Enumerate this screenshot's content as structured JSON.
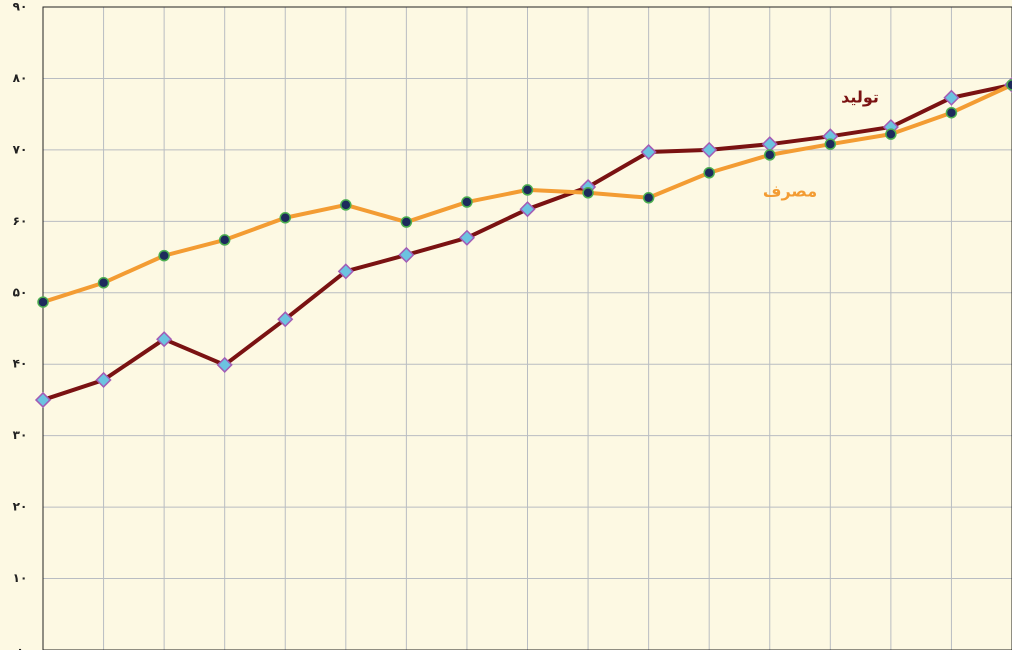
{
  "chart_data": {
    "type": "line",
    "categories": [
      null,
      null,
      null,
      null,
      null,
      null,
      null,
      null,
      null,
      null,
      null,
      null,
      null,
      null,
      null,
      null,
      null
    ],
    "series": [
      {
        "name": "تولید",
        "color": "#7a1212",
        "marker": "diamond",
        "marker_fill": "#6cc3e0",
        "marker_edge": "#a35bb5",
        "values": [
          35,
          37.8,
          43.5,
          39.9,
          46.3,
          53,
          55.3,
          57.7,
          61.7,
          64.8,
          69.7,
          70,
          70.8,
          71.9,
          73.2,
          77.3,
          79.1
        ]
      },
      {
        "name": "مصرف",
        "color": "#f39c33",
        "marker": "circle",
        "marker_fill": "#1d2a5c",
        "marker_edge": "#4caf50",
        "values": [
          48.7,
          51.4,
          55.2,
          57.4,
          60.5,
          62.3,
          59.9,
          62.7,
          64.4,
          64,
          63.3,
          66.8,
          69.3,
          70.8,
          72.2,
          75.2,
          79.1
        ]
      }
    ],
    "ylim": [
      0,
      90
    ],
    "yticks": [
      {
        "value": 0,
        "label": "۰"
      },
      {
        "value": 10,
        "label": "۱۰"
      },
      {
        "value": 20,
        "label": "۲۰"
      },
      {
        "value": 30,
        "label": "۳۰"
      },
      {
        "value": 40,
        "label": "۴۰"
      },
      {
        "value": 50,
        "label": "۵۰"
      },
      {
        "value": 60,
        "label": "۶۰"
      },
      {
        "value": 70,
        "label": "۷۰"
      },
      {
        "value": 80,
        "label": "۸۰"
      },
      {
        "value": 90,
        "label": "۹۰"
      }
    ],
    "grid": true
  }
}
